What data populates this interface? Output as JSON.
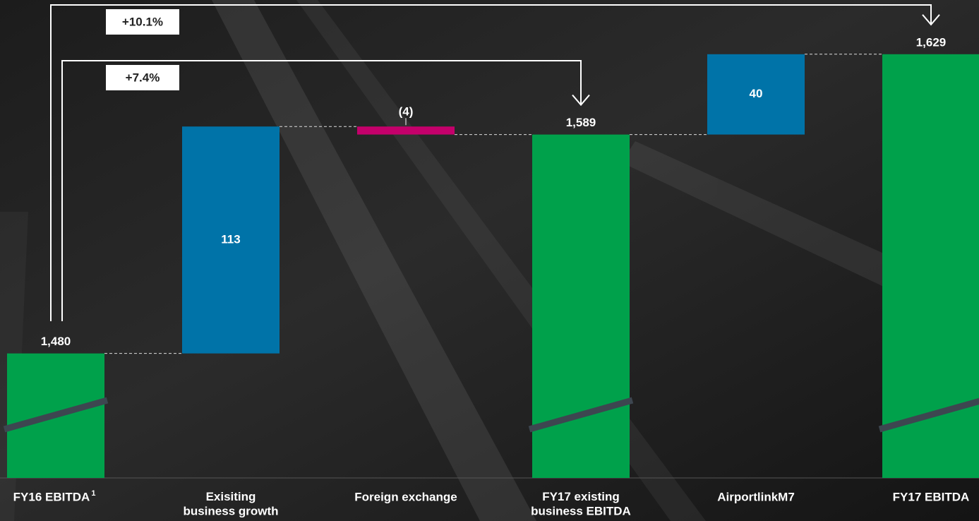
{
  "chart_data": {
    "type": "waterfall",
    "categories": [
      "FY16 EBITDA",
      "Exisiting\nbusiness growth",
      "Foreign exchange",
      "FY17 existing\nbusiness EBITDA",
      "AirportlinkM7",
      "FY17 EBITDA"
    ],
    "footnote_marker": "1",
    "values": [
      1480,
      113,
      -4,
      1589,
      40,
      1629
    ],
    "value_labels": [
      "1,480",
      "113",
      "(4)",
      "1,589",
      "40",
      "1,629"
    ],
    "kinds": [
      "total",
      "delta",
      "delta",
      "total",
      "delta",
      "total"
    ],
    "colors": [
      "#00a14b",
      "#0073a8",
      "#c4006b",
      "#00a14b",
      "#0073a8",
      "#00a14b"
    ],
    "ylim": [
      1418,
      1656
    ],
    "axis_break": true,
    "annotations": [
      {
        "label": "+10.1%",
        "from": 0,
        "to": 5
      },
      {
        "label": "+7.4%",
        "from": 0,
        "to": 3
      }
    ]
  }
}
